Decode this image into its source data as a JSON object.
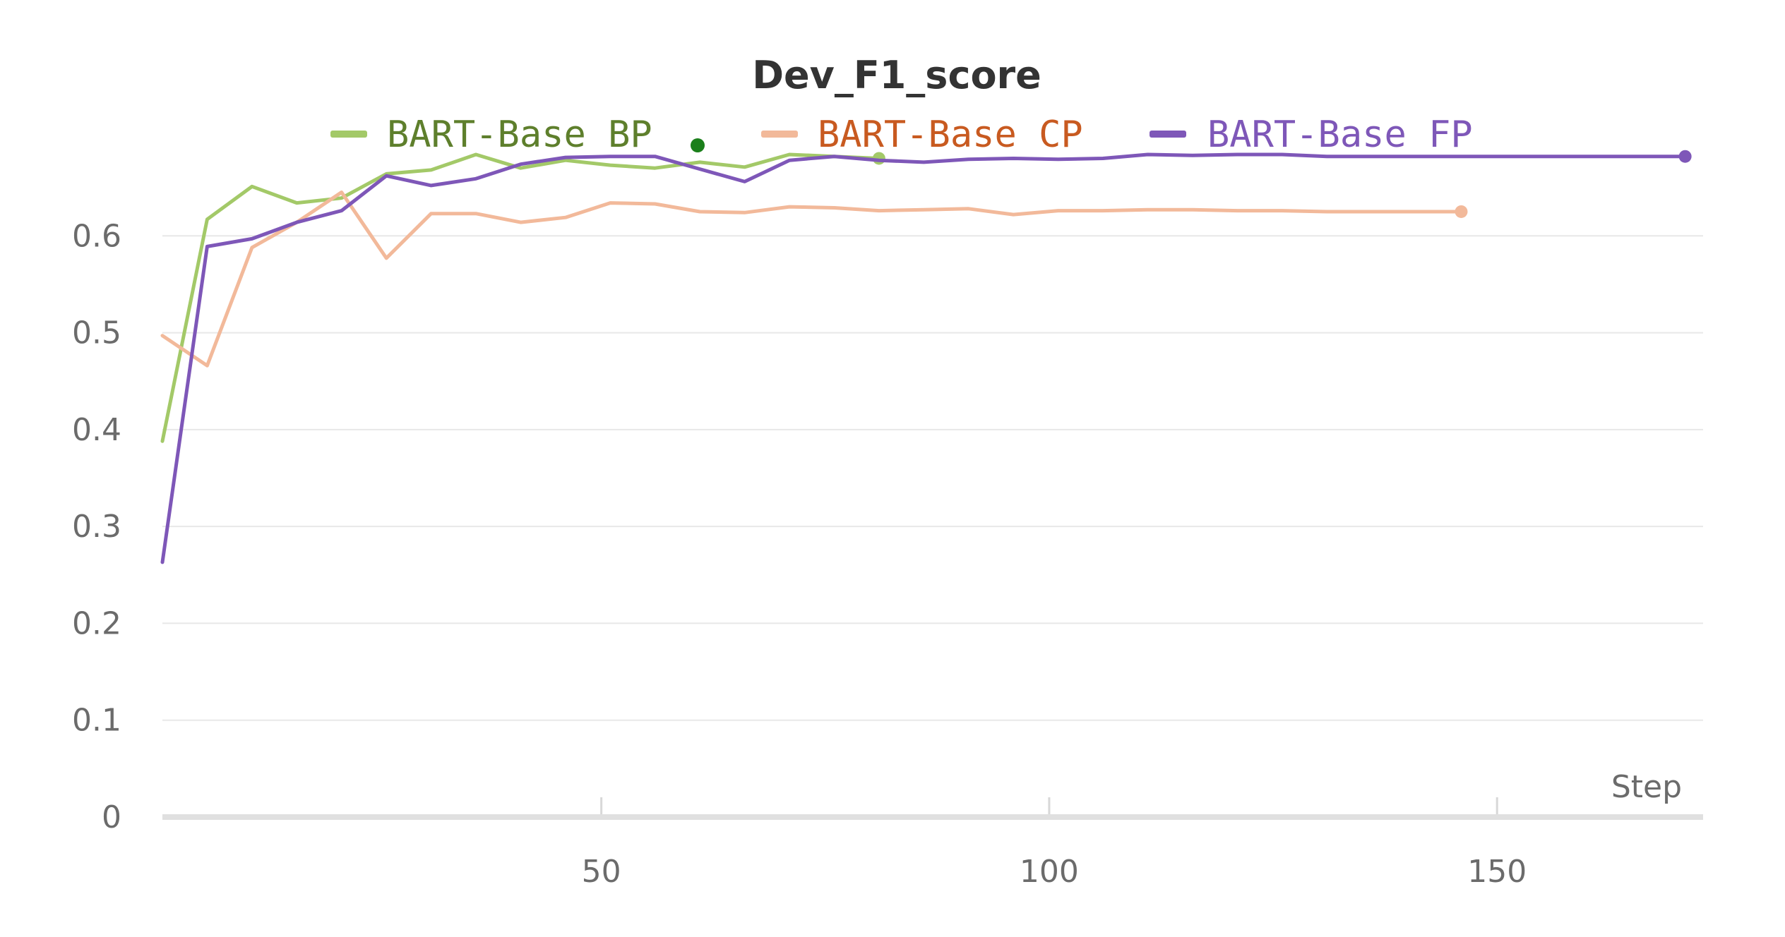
{
  "chart_data": {
    "type": "line",
    "title": "Dev_F1_score",
    "xlabel": "Step",
    "ylabel": "",
    "xlim": [
      1,
      173
    ],
    "ylim": [
      0,
      0.7
    ],
    "x_ticks": [
      50,
      100,
      150
    ],
    "y_ticks": [
      0,
      0.1,
      0.2,
      0.3,
      0.4,
      0.5,
      0.6
    ],
    "grid": true,
    "legend_position": "top",
    "legend_run_marker_color": "#1b7f1b",
    "series": [
      {
        "name": "BART-Base BP",
        "color": "#a3c968",
        "label_color": "#5e7f2c",
        "x": [
          1,
          6,
          11,
          16,
          21,
          26,
          31,
          36,
          41,
          46,
          51,
          56,
          61,
          66,
          71,
          76,
          81
        ],
        "y": [
          0.388,
          0.617,
          0.651,
          0.634,
          0.639,
          0.664,
          0.668,
          0.684,
          0.67,
          0.678,
          0.673,
          0.67,
          0.676,
          0.671,
          0.684,
          0.682,
          0.68
        ]
      },
      {
        "name": "BART-Base CP",
        "color": "#f2b99a",
        "label_color": "#c85a20",
        "x": [
          1,
          6,
          11,
          16,
          21,
          26,
          31,
          36,
          41,
          46,
          51,
          56,
          61,
          66,
          71,
          76,
          81,
          86,
          91,
          96,
          101,
          106,
          111,
          116,
          121,
          126,
          131,
          136,
          141,
          146
        ],
        "y": [
          0.497,
          0.466,
          0.588,
          0.614,
          0.645,
          0.577,
          0.623,
          0.623,
          0.614,
          0.619,
          0.634,
          0.633,
          0.625,
          0.624,
          0.63,
          0.629,
          0.626,
          0.627,
          0.628,
          0.622,
          0.626,
          0.626,
          0.627,
          0.627,
          0.626,
          0.626,
          0.625,
          0.625,
          0.625,
          0.625
        ]
      },
      {
        "name": "BART-Base FP",
        "color": "#7e57b8",
        "label_color": "#7e57b8",
        "x": [
          1,
          6,
          11,
          16,
          21,
          26,
          31,
          36,
          41,
          46,
          51,
          56,
          61,
          66,
          71,
          76,
          81,
          86,
          91,
          96,
          101,
          106,
          111,
          116,
          121,
          126,
          131,
          136,
          141,
          146,
          151,
          156,
          161,
          166,
          171
        ],
        "y": [
          0.263,
          0.589,
          0.597,
          0.614,
          0.626,
          0.662,
          0.652,
          0.659,
          0.674,
          0.681,
          0.682,
          0.682,
          0.669,
          0.656,
          0.678,
          0.682,
          0.678,
          0.676,
          0.679,
          0.68,
          0.679,
          0.68,
          0.684,
          0.683,
          0.684,
          0.684,
          0.682,
          0.682,
          0.682,
          0.682,
          0.682,
          0.682,
          0.682,
          0.682,
          0.682
        ]
      }
    ]
  }
}
